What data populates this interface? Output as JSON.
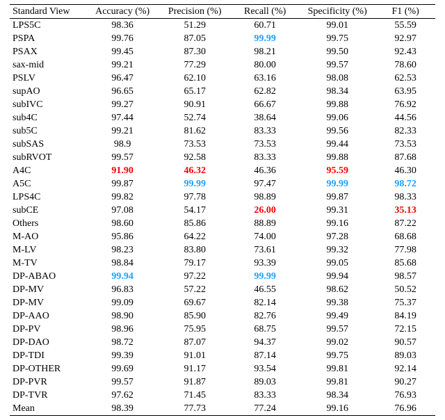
{
  "table": {
    "columns": [
      "Standard View",
      "Accuracy (%)",
      "Precision (%)",
      "Recall (%)",
      "Specificity (%)",
      "F1 (%)"
    ],
    "highlight_colors": {
      "min": "#ff0000",
      "max": "#1ea0ff"
    },
    "rows": [
      {
        "name": "LPS5C",
        "acc": "98.36",
        "prec": "51.29",
        "rec": "60.71",
        "spec": "99.01",
        "f1": "55.59"
      },
      {
        "name": "PSPA",
        "acc": "99.76",
        "prec": "87.05",
        "rec": "99.99",
        "spec": "99.75",
        "f1": "92.97",
        "hl": {
          "rec": "max"
        }
      },
      {
        "name": "PSAX",
        "acc": "99.45",
        "prec": "87.30",
        "rec": "98.21",
        "spec": "99.50",
        "f1": "92.43"
      },
      {
        "name": "sax-mid",
        "acc": "99.21",
        "prec": "77.29",
        "rec": "80.00",
        "spec": "99.57",
        "f1": "78.60"
      },
      {
        "name": "PSLV",
        "acc": "96.47",
        "prec": "62.10",
        "rec": "63.16",
        "spec": "98.08",
        "f1": "62.53"
      },
      {
        "name": "supAO",
        "acc": "96.65",
        "prec": "65.17",
        "rec": "62.82",
        "spec": "98.34",
        "f1": "63.95"
      },
      {
        "name": "subIVC",
        "acc": "99.27",
        "prec": "90.91",
        "rec": "66.67",
        "spec": "99.88",
        "f1": "76.92"
      },
      {
        "name": "sub4C",
        "acc": "97.44",
        "prec": "52.74",
        "rec": "38.64",
        "spec": "99.06",
        "f1": "44.56"
      },
      {
        "name": "sub5C",
        "acc": "99.21",
        "prec": "81.62",
        "rec": "83.33",
        "spec": "99.56",
        "f1": "82.33"
      },
      {
        "name": "subSAS",
        "acc": "98.9",
        "prec": "73.53",
        "rec": "73.53",
        "spec": "99.44",
        "f1": "73.53"
      },
      {
        "name": "subRVOT",
        "acc": "99.57",
        "prec": "92.58",
        "rec": "83.33",
        "spec": "99.88",
        "f1": "87.68"
      },
      {
        "name": "A4C",
        "acc": "91.90",
        "prec": "46.32",
        "rec": "46.36",
        "spec": "95.59",
        "f1": "46.30",
        "hl": {
          "acc": "min",
          "prec": "min",
          "spec": "min"
        }
      },
      {
        "name": "A5C",
        "acc": "99.87",
        "prec": "99.99",
        "rec": "97.47",
        "spec": "99.99",
        "f1": "98.72",
        "hl": {
          "prec": "max",
          "spec": "max",
          "f1": "max"
        }
      },
      {
        "name": "LPS4C",
        "acc": "99.82",
        "prec": "97.78",
        "rec": "98.89",
        "spec": "99.87",
        "f1": "98.33"
      },
      {
        "name": "subCE",
        "acc": "97.08",
        "prec": "54.17",
        "rec": "26.00",
        "spec": "99.31",
        "f1": "35.13",
        "hl": {
          "rec": "min",
          "f1": "min"
        }
      },
      {
        "name": "Others",
        "acc": "98.60",
        "prec": "85.86",
        "rec": "88.89",
        "spec": "99.16",
        "f1": "87.22"
      },
      {
        "name": "M-AO",
        "acc": "95.86",
        "prec": "64.22",
        "rec": "74.00",
        "spec": "97.28",
        "f1": "68.68"
      },
      {
        "name": "M-LV",
        "acc": "98.23",
        "prec": "83.80",
        "rec": "73.61",
        "spec": "99.32",
        "f1": "77.98"
      },
      {
        "name": "M-TV",
        "acc": "98.84",
        "prec": "79.17",
        "rec": "93.39",
        "spec": "99.05",
        "f1": "85.68"
      },
      {
        "name": "DP-ABAO",
        "acc": "99.94",
        "prec": "97.22",
        "rec": "99.99",
        "spec": "99.94",
        "f1": "98.57",
        "hl": {
          "acc": "max",
          "rec": "max"
        }
      },
      {
        "name": "DP-MV",
        "acc": "96.83",
        "prec": "57.22",
        "rec": "46.55",
        "spec": "98.62",
        "f1": "50.52"
      },
      {
        "name": "DP-MV",
        "acc": "99.09",
        "prec": "69.67",
        "rec": "82.14",
        "spec": "99.38",
        "f1": "75.37"
      },
      {
        "name": "DP-AAO",
        "acc": "98.90",
        "prec": "85.90",
        "rec": "82.76",
        "spec": "99.49",
        "f1": "84.19"
      },
      {
        "name": "DP-PV",
        "acc": "98.96",
        "prec": "75.95",
        "rec": "68.75",
        "spec": "99.57",
        "f1": "72.15"
      },
      {
        "name": "DP-DAO",
        "acc": "98.72",
        "prec": "87.07",
        "rec": "94.37",
        "spec": "99.02",
        "f1": "90.57"
      },
      {
        "name": "DP-TDI",
        "acc": "99.39",
        "prec": "91.01",
        "rec": "87.14",
        "spec": "99.75",
        "f1": "89.03"
      },
      {
        "name": "DP-OTHER",
        "acc": "99.69",
        "prec": "91.17",
        "rec": "93.54",
        "spec": "99.81",
        "f1": "92.14"
      },
      {
        "name": "DP-PVR",
        "acc": "99.57",
        "prec": "91.87",
        "rec": "89.03",
        "spec": "99.81",
        "f1": "90.27"
      },
      {
        "name": "DP-TVR",
        "acc": "97.62",
        "prec": "71.45",
        "rec": "83.33",
        "spec": "98.34",
        "f1": "76.93"
      },
      {
        "name": "Mean",
        "acc": "98.39",
        "prec": "77.73",
        "rec": "77.24",
        "spec": "99.16",
        "f1": "76.96"
      }
    ]
  }
}
